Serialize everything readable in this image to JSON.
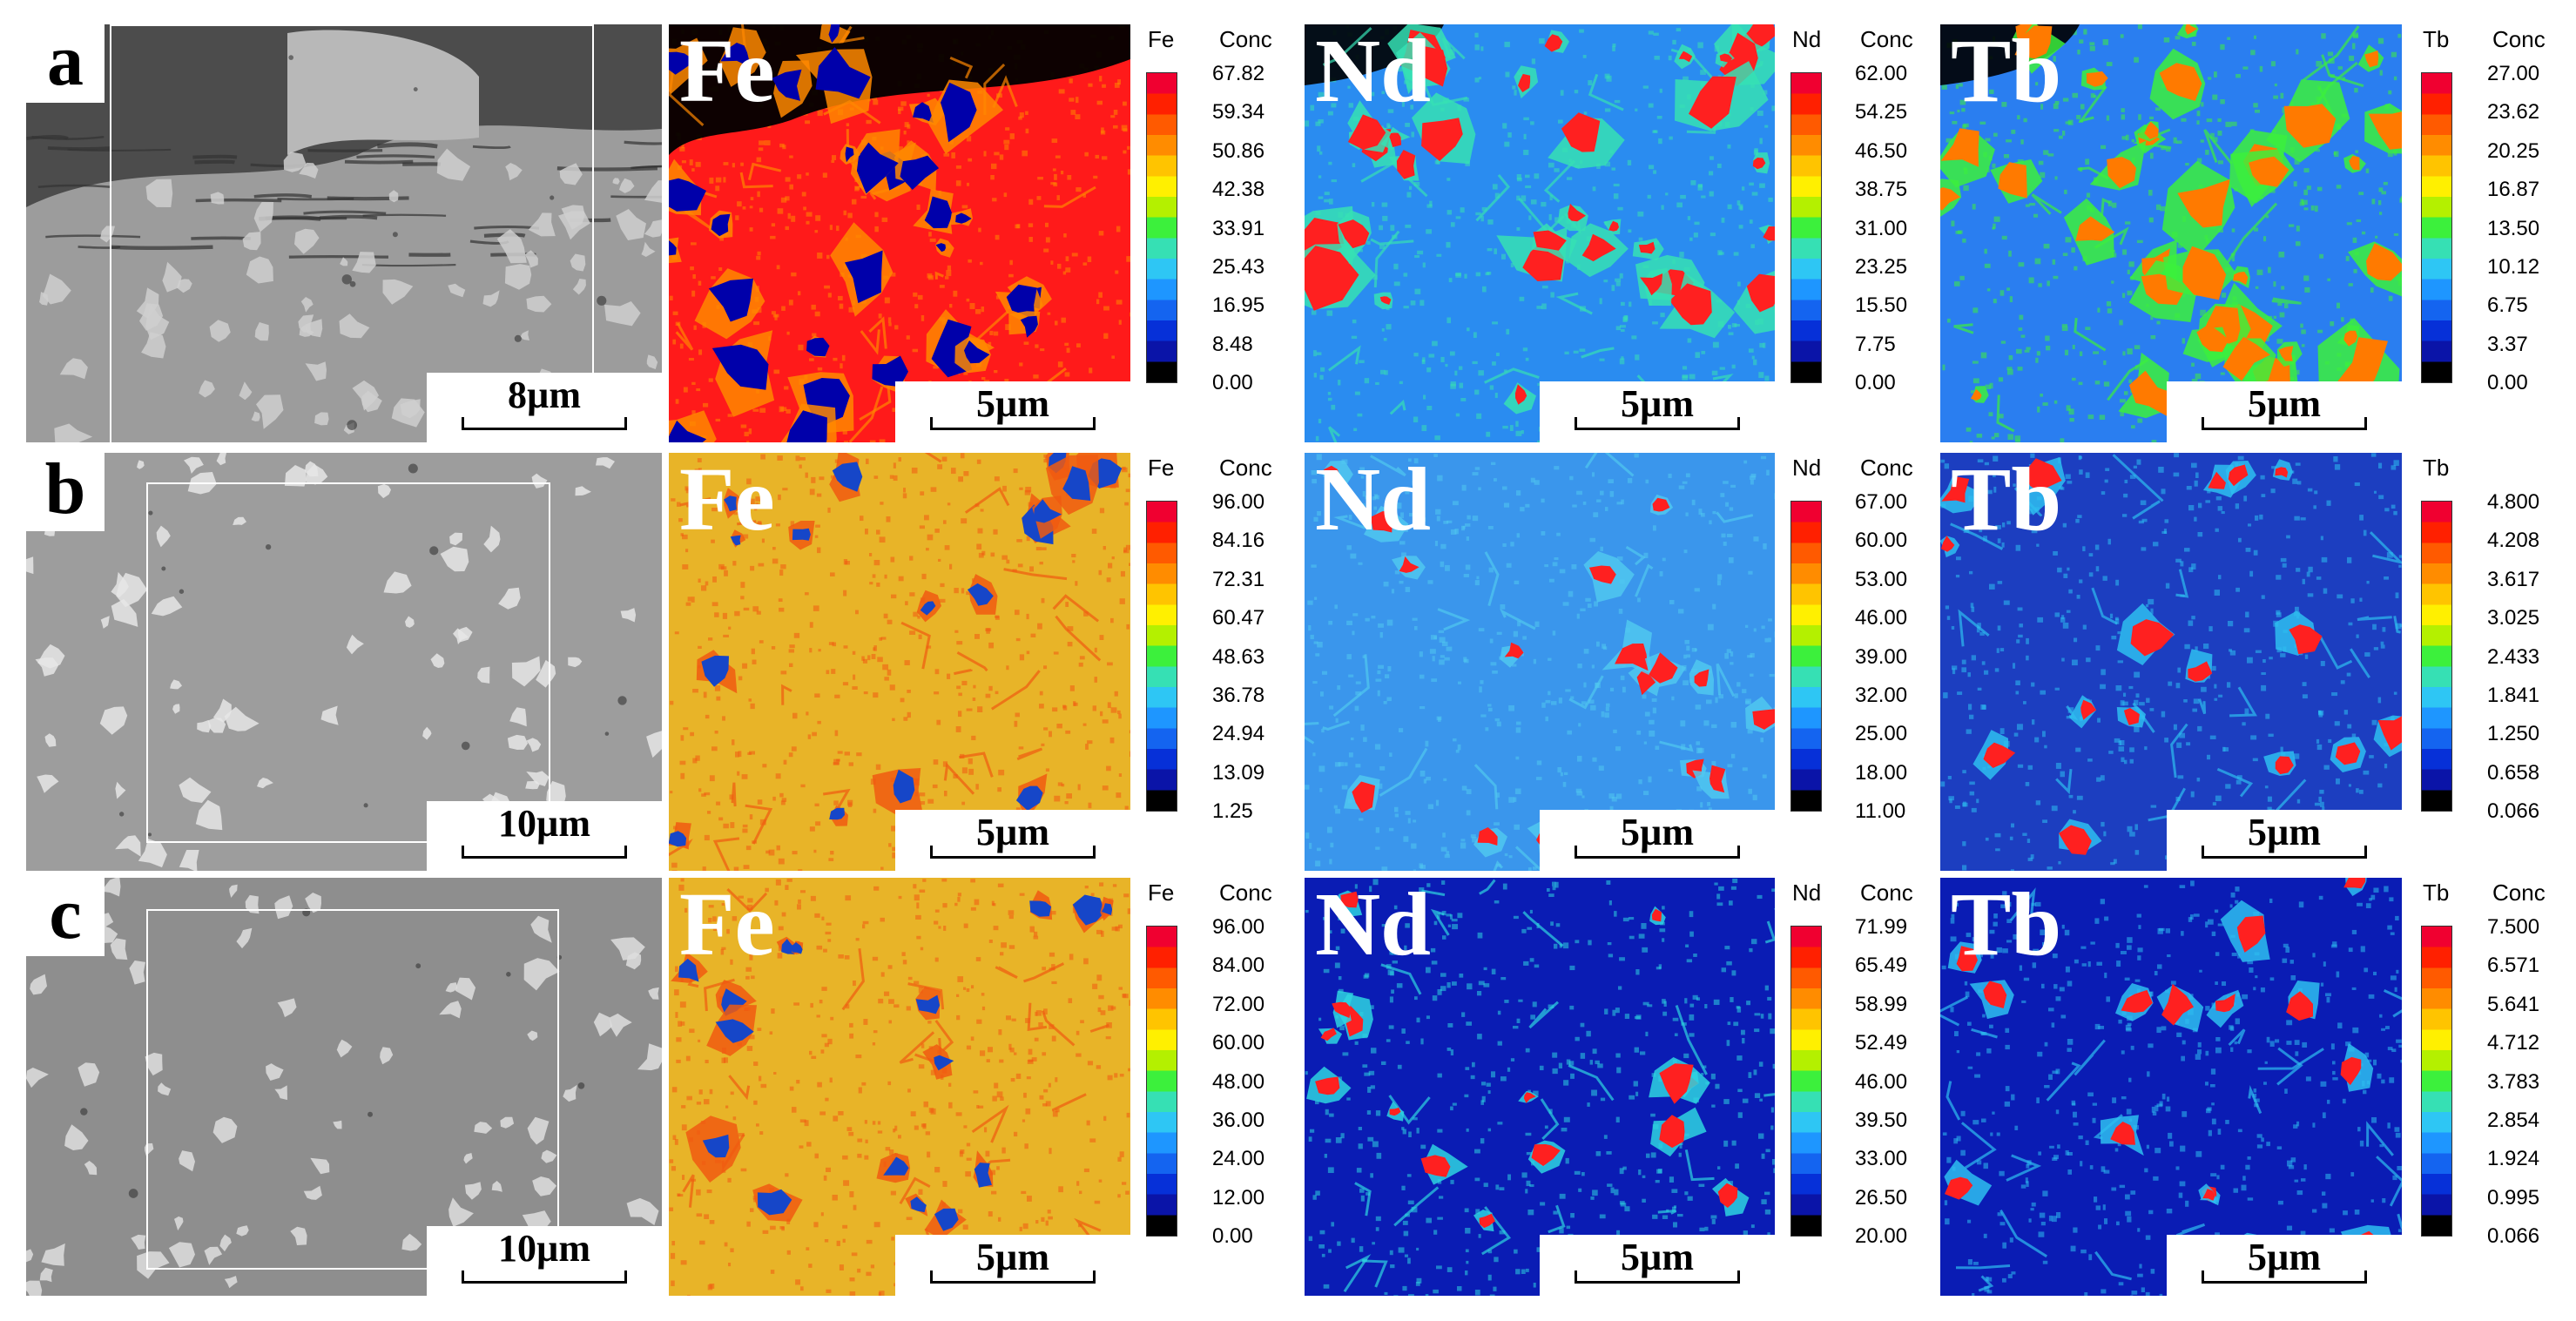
{
  "colorbar_palette": [
    "#000000",
    "#0a14a8",
    "#0630d8",
    "#1464f0",
    "#1e96ff",
    "#2ec6f4",
    "#36e0b4",
    "#3cf03c",
    "#b4f000",
    "#fff000",
    "#ffc400",
    "#ff8c00",
    "#ff5a00",
    "#ff2000",
    "#f00030"
  ],
  "rows": [
    {
      "letter": "a",
      "sem_scale": "8µm",
      "sem_colors": [
        "#4c4c4c",
        "#9c9c9c",
        "#cfcfcf"
      ],
      "maps": [
        {
          "element": "Fe",
          "conc_header": "Conc",
          "scale": "5µm",
          "ticks": [
            "67.82",
            "59.34",
            "50.86",
            "42.38",
            "33.91",
            "25.43",
            "16.95",
            "8.48",
            "0.00"
          ],
          "colors": {
            "base": "#ff1a1a",
            "mid": "#ff8800",
            "spot": "#0000aa",
            "dark": "#000000"
          }
        },
        {
          "element": "Nd",
          "conc_header": "Conc",
          "scale": "5µm",
          "ticks": [
            "62.00",
            "54.25",
            "46.50",
            "38.75",
            "31.00",
            "23.25",
            "15.50",
            "7.75",
            "0.00"
          ],
          "colors": {
            "base": "#2a8cf0",
            "mid": "#36e0b4",
            "spot": "#ff2020",
            "dark": "#000000"
          }
        },
        {
          "element": "Tb",
          "conc_header": "Conc",
          "scale": "5µm",
          "ticks": [
            "27.00",
            "23.62",
            "20.25",
            "16.87",
            "13.50",
            "10.12",
            "6.75",
            "3.37",
            "0.00"
          ],
          "colors": {
            "base": "#2a7ef0",
            "mid": "#3cf03c",
            "spot": "#ff7a00",
            "dark": "#000000"
          }
        }
      ]
    },
    {
      "letter": "b",
      "sem_scale": "10µm",
      "sem_colors": [
        "#8e8e8e",
        "#9d9d9d",
        "#e6e6e6"
      ],
      "maps": [
        {
          "element": "Fe",
          "conc_header": "Conc",
          "scale": "5µm",
          "ticks": [
            "96.00",
            "84.16",
            "72.31",
            "60.47",
            "48.63",
            "36.78",
            "24.94",
            "13.09",
            "1.25"
          ],
          "colors": {
            "base": "#e8b428",
            "mid": "#f05a10",
            "spot": "#1646c8",
            "dark": "#00007a"
          }
        },
        {
          "element": "Nd",
          "conc_header": "Conc",
          "scale": "5µm",
          "ticks": [
            "67.00",
            "60.00",
            "53.00",
            "46.00",
            "39.00",
            "32.00",
            "25.00",
            "18.00",
            "11.00"
          ],
          "colors": {
            "base": "#3a96ec",
            "mid": "#50c8f0",
            "spot": "#ff2020",
            "dark": "#000000"
          }
        },
        {
          "element": "Tb",
          "conc_header": "",
          "scale": "5µm",
          "ticks": [
            "4.800",
            "4.208",
            "3.617",
            "3.025",
            "2.433",
            "1.841",
            "1.250",
            "0.658",
            "0.066"
          ],
          "colors": {
            "base": "#1c3ec0",
            "mid": "#2ebef0",
            "spot": "#ff2020",
            "dark": "#000070"
          }
        }
      ]
    },
    {
      "letter": "c",
      "sem_scale": "10µm",
      "sem_colors": [
        "#7a7a7a",
        "#8e8e8e",
        "#dedede"
      ],
      "maps": [
        {
          "element": "Fe",
          "conc_header": "Conc",
          "scale": "5µm",
          "ticks": [
            "96.00",
            "84.00",
            "72.00",
            "60.00",
            "48.00",
            "36.00",
            "24.00",
            "12.00",
            "0.00"
          ],
          "colors": {
            "base": "#e8b428",
            "mid": "#f05a10",
            "spot": "#1646c8",
            "dark": "#00007a"
          }
        },
        {
          "element": "Nd",
          "conc_header": "Conc",
          "scale": "5µm",
          "ticks": [
            "71.99",
            "65.49",
            "58.99",
            "52.49",
            "46.00",
            "39.50",
            "33.00",
            "26.50",
            "20.00"
          ],
          "colors": {
            "base": "#0a1cb4",
            "mid": "#2ed4e0",
            "spot": "#ff2020",
            "dark": "#000050"
          }
        },
        {
          "element": "Tb",
          "conc_header": "Conc",
          "scale": "5µm",
          "ticks": [
            "7.500",
            "6.571",
            "5.641",
            "4.712",
            "3.783",
            "2.854",
            "1.924",
            "0.995",
            "0.066"
          ],
          "colors": {
            "base": "#0a1cb4",
            "mid": "#2ebef0",
            "spot": "#ff2020",
            "dark": "#000050"
          }
        }
      ]
    }
  ]
}
